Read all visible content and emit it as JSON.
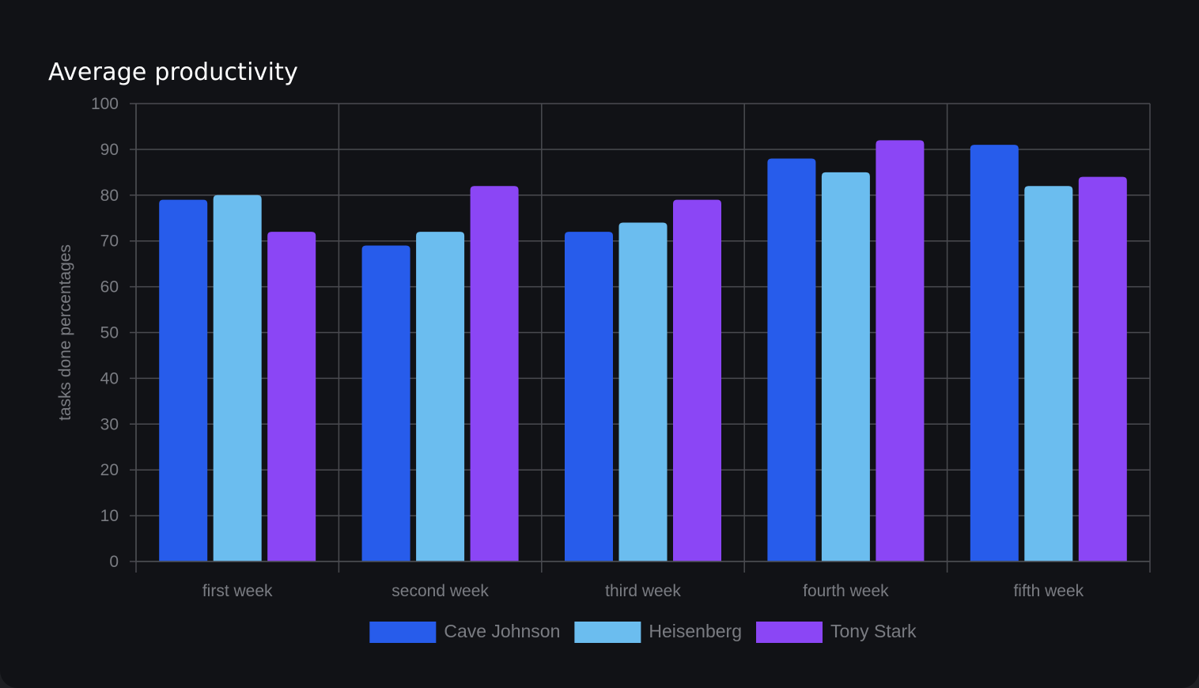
{
  "chart_data": {
    "type": "bar",
    "title": "Average productivity",
    "xlabel": "",
    "ylabel": "tasks done percentages",
    "ylim": [
      0,
      100
    ],
    "yticks": [
      0,
      10,
      20,
      30,
      40,
      50,
      60,
      70,
      80,
      90,
      100
    ],
    "categories": [
      "first week",
      "second week",
      "third week",
      "fourth week",
      "fifth week"
    ],
    "series": [
      {
        "name": "Cave Johnson",
        "color": "#275ceb",
        "values": [
          79,
          69,
          72,
          88,
          91
        ]
      },
      {
        "name": "Heisenberg",
        "color": "#6bbdef",
        "values": [
          80,
          72,
          74,
          85,
          82
        ]
      },
      {
        "name": "Tony Stark",
        "color": "#8b46f5",
        "values": [
          72,
          82,
          79,
          92,
          84
        ]
      }
    ],
    "grid": true,
    "legend_position": "bottom"
  },
  "colors": {
    "background": "#111216",
    "grid": "#4a4b50",
    "text": "#7a7c82",
    "title": "#ffffff"
  }
}
